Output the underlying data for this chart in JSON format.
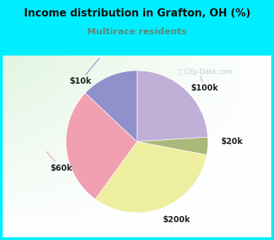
{
  "title": "Income distribution in Grafton, OH (%)",
  "subtitle": "Multirace residents",
  "title_color": "#111111",
  "subtitle_color": "#5a8a7a",
  "bg_cyan": "#00eeff",
  "slices": [
    {
      "label": "$100k",
      "value": 24,
      "color": "#c0b0d8"
    },
    {
      "label": "$20k",
      "value": 4,
      "color": "#aab87a"
    },
    {
      "label": "$200k",
      "value": 32,
      "color": "#eeeea0"
    },
    {
      "label": "$60k",
      "value": 27,
      "color": "#f0a0b0"
    },
    {
      "label": "$10k",
      "value": 13,
      "color": "#9090cc"
    }
  ],
  "startangle": 90,
  "label_fontsize": 8.5,
  "watermark": "City-Data.com",
  "watermark_color": "#aabbcc",
  "label_color": "#222222"
}
